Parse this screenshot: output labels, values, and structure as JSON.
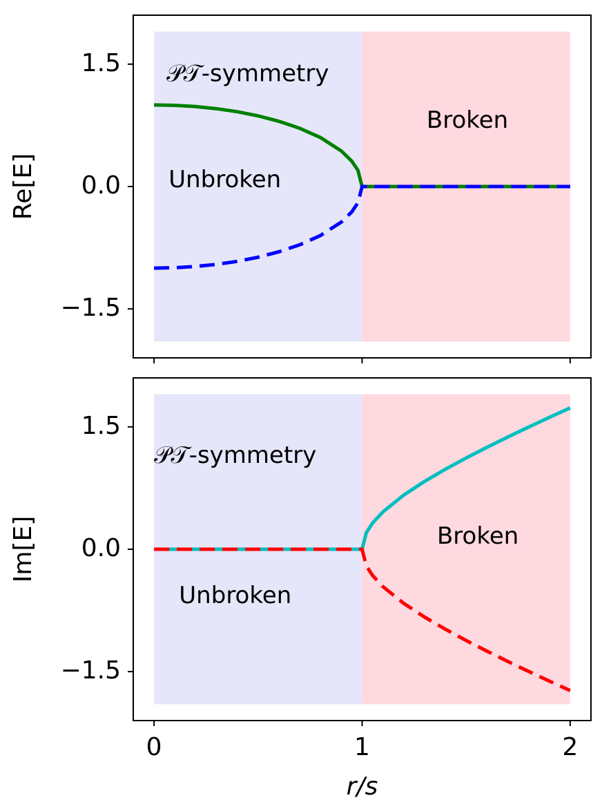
{
  "chart_data": [
    {
      "type": "line",
      "ylabel": "Re[E]",
      "x": [
        0,
        0.1,
        0.2,
        0.3,
        0.4,
        0.5,
        0.6,
        0.7,
        0.8,
        0.9,
        0.95,
        0.98,
        1.0,
        1.02,
        1.05,
        1.1,
        1.2,
        1.3,
        1.4,
        1.5,
        1.6,
        1.7,
        1.8,
        1.9,
        2.0
      ],
      "series": [
        {
          "color": "#008000",
          "dashed": false,
          "values": [
            1,
            0.995,
            0.98,
            0.954,
            0.917,
            0.866,
            0.8,
            0.714,
            0.6,
            0.436,
            0.312,
            0.199,
            0,
            0,
            0,
            0,
            0,
            0,
            0,
            0,
            0,
            0,
            0,
            0,
            0
          ]
        },
        {
          "color": "#0000ff",
          "dashed": true,
          "values": [
            -1,
            -0.995,
            -0.98,
            -0.954,
            -0.917,
            -0.866,
            -0.8,
            -0.714,
            -0.6,
            -0.436,
            -0.312,
            -0.199,
            0,
            0,
            0,
            0,
            0,
            0,
            0,
            0,
            0,
            0,
            0,
            0,
            0
          ]
        }
      ],
      "regions": [
        {
          "xlim": [
            0,
            1
          ],
          "ylim": [
            -1.9,
            1.9
          ],
          "color": "#e6e6fa"
        },
        {
          "xlim": [
            1,
            2
          ],
          "ylim": [
            -1.9,
            1.9
          ],
          "color": "#ffd9e0"
        }
      ],
      "annotations": [
        {
          "text": "𝒫𝒯-symmetry",
          "x": 0.06,
          "y": 1.37
        },
        {
          "text": "Unbroken",
          "x": 0.07,
          "y": 0.07
        },
        {
          "text": "Broken",
          "x": 1.31,
          "y": 0.8
        }
      ],
      "xlim": [
        -0.1,
        2.1
      ],
      "ylim": [
        -2.1,
        2.1
      ],
      "xticks": [
        0,
        1,
        2
      ],
      "yticks": [
        1.5,
        {
          "value": 0,
          "label": "0.0"
        },
        {
          "value": -1.5,
          "label": "−1.5"
        }
      ],
      "show_xtick_labels": false
    },
    {
      "type": "line",
      "ylabel": "Im[E]",
      "xlabel": "r/s",
      "x": [
        0,
        0.1,
        0.2,
        0.3,
        0.4,
        0.5,
        0.6,
        0.7,
        0.8,
        0.9,
        0.95,
        0.98,
        1.0,
        1.02,
        1.05,
        1.1,
        1.2,
        1.3,
        1.4,
        1.5,
        1.6,
        1.7,
        1.8,
        1.9,
        2.0
      ],
      "series": [
        {
          "color": "#00bfbf",
          "dashed": false,
          "values": [
            0,
            0,
            0,
            0,
            0,
            0,
            0,
            0,
            0,
            0,
            0,
            0,
            0,
            0.201,
            0.32,
            0.458,
            0.663,
            0.831,
            0.98,
            1.118,
            1.249,
            1.375,
            1.497,
            1.616,
            1.732
          ]
        },
        {
          "color": "#ff0000",
          "dashed": true,
          "values": [
            0,
            0,
            0,
            0,
            0,
            0,
            0,
            0,
            0,
            0,
            0,
            0,
            0,
            -0.201,
            -0.32,
            -0.458,
            -0.663,
            -0.831,
            -0.98,
            -1.118,
            -1.249,
            -1.375,
            -1.497,
            -1.616,
            -1.732
          ]
        }
      ],
      "regions": [
        {
          "xlim": [
            0,
            1
          ],
          "ylim": [
            -1.9,
            1.9
          ],
          "color": "#e6e6fa"
        },
        {
          "xlim": [
            1,
            2
          ],
          "ylim": [
            -1.9,
            1.9
          ],
          "color": "#ffd9e0"
        }
      ],
      "annotations": [
        {
          "text": "𝒫𝒯-symmetry",
          "x": 0.0,
          "y": 1.14
        },
        {
          "text": "Unbroken",
          "x": 0.12,
          "y": -0.58
        },
        {
          "text": "Broken",
          "x": 1.36,
          "y": 0.15
        }
      ],
      "xlim": [
        -0.1,
        2.1
      ],
      "ylim": [
        -2.1,
        2.1
      ],
      "xticks": [
        0,
        1,
        2
      ],
      "yticks": [
        1.5,
        {
          "value": 0,
          "label": "0.0"
        },
        {
          "value": -1.5,
          "label": "−1.5"
        }
      ],
      "show_xtick_labels": true
    }
  ]
}
